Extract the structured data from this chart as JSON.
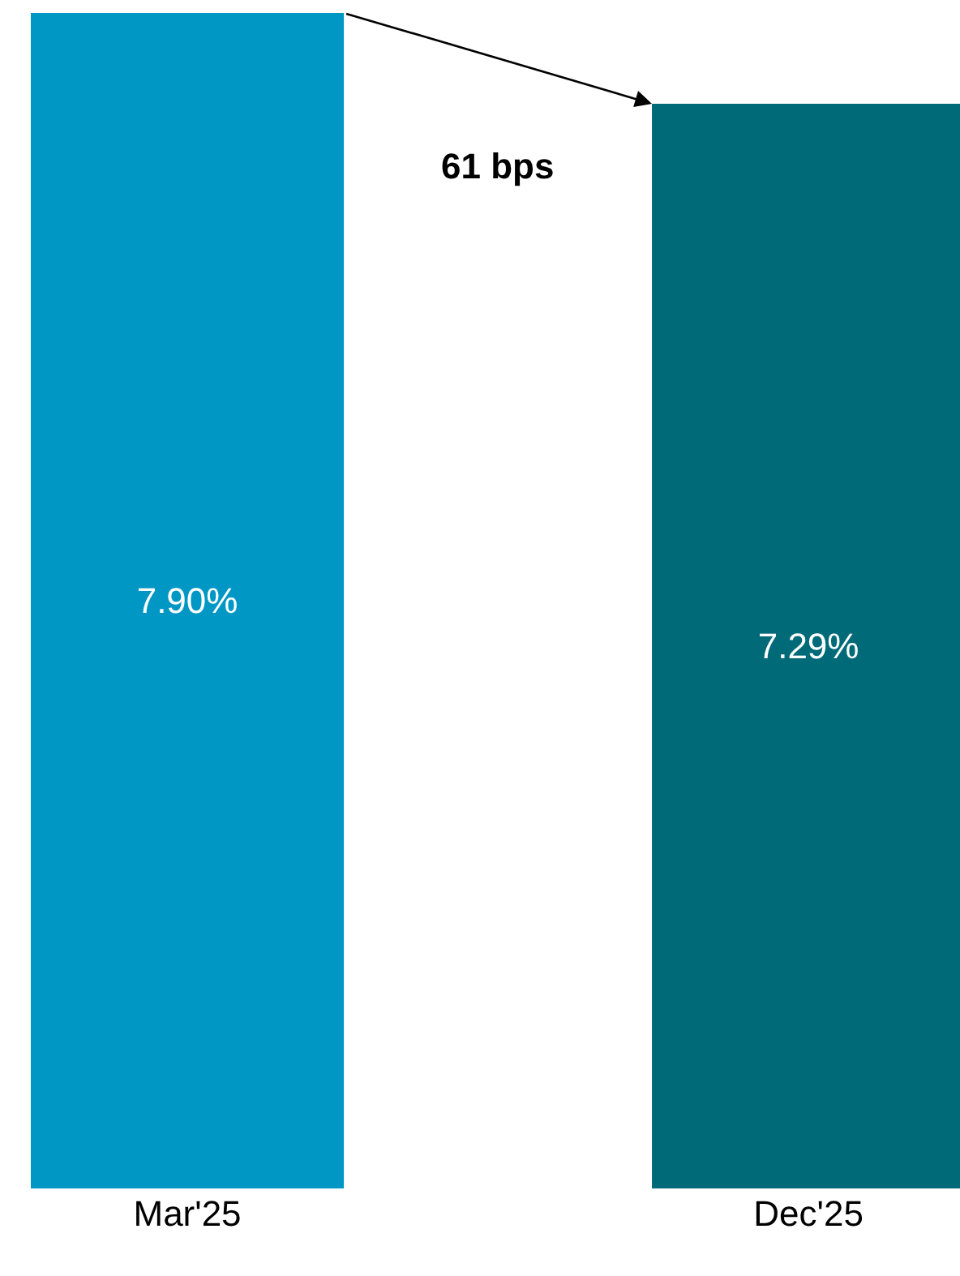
{
  "chart_data": {
    "type": "bar",
    "categories": [
      "Mar'25",
      "Dec'25"
    ],
    "values": [
      7.9,
      7.29
    ],
    "colors": [
      "#0097c4",
      "#006a79"
    ],
    "value_labels": [
      "7.90%",
      "7.29%"
    ],
    "annotations": [
      "61 bps"
    ],
    "tick_labels": "x"
  }
}
